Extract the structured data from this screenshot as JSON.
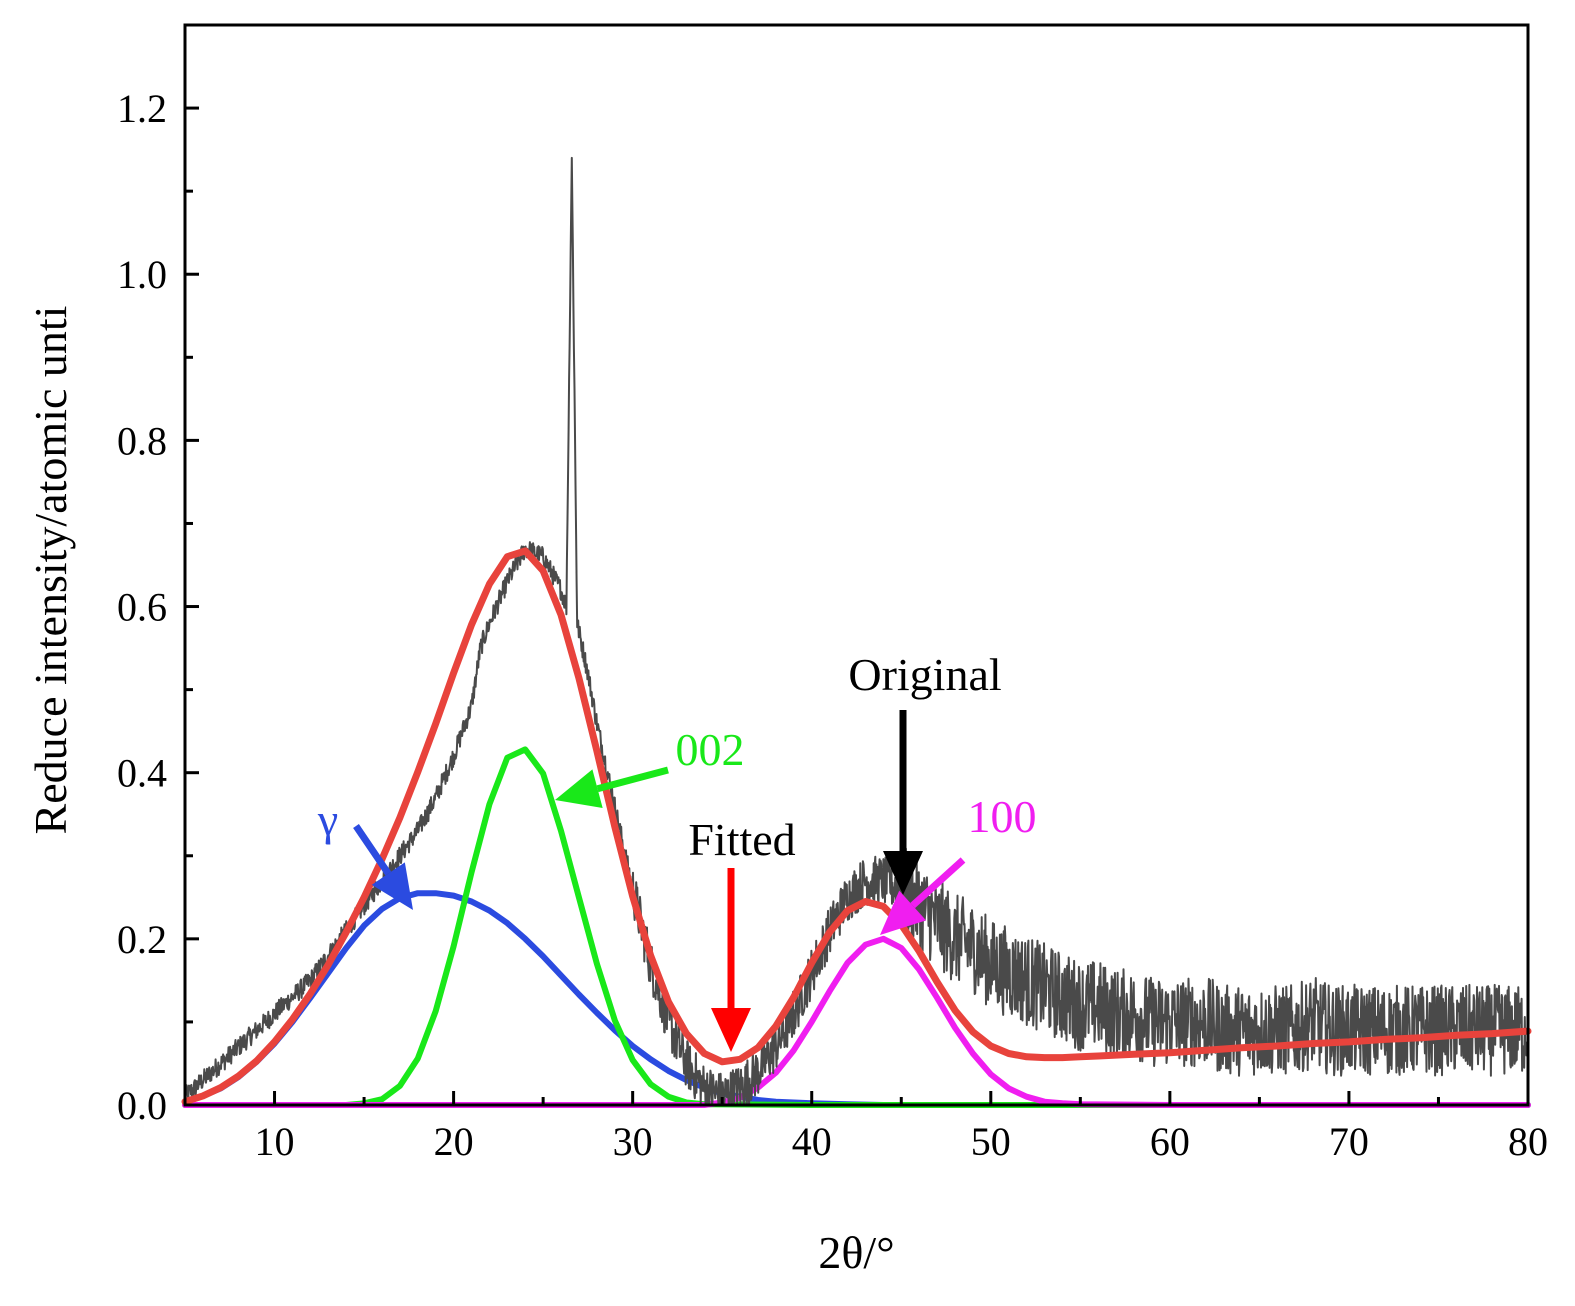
{
  "chart_data": {
    "type": "line",
    "title": "",
    "xlabel": "2θ/°",
    "ylabel": "Reduce intensity/atomic unti",
    "xlim": [
      5,
      80
    ],
    "ylim": [
      0,
      1.3
    ],
    "x_ticks": [
      10,
      20,
      30,
      40,
      50,
      60,
      70,
      80
    ],
    "y_ticks": [
      0.0,
      0.2,
      0.4,
      0.6,
      0.8,
      1.0,
      1.2
    ],
    "x_tick_labels": [
      "10",
      "20",
      "30",
      "40",
      "50",
      "60",
      "70",
      "80"
    ],
    "y_tick_labels": [
      "0.0",
      "0.2",
      "0.4",
      "0.6",
      "0.8",
      "1.0",
      "1.2"
    ],
    "grid": false,
    "series": [
      {
        "name": "Original",
        "color": "#4a4a4a",
        "x": [
          5,
          6,
          7,
          8,
          9,
          10,
          11,
          12,
          13,
          14,
          15,
          16,
          17,
          18,
          19,
          20,
          21,
          21.5,
          22,
          23,
          24,
          25,
          26,
          26.3,
          26.6,
          26.9,
          27.5,
          28,
          29,
          30,
          31,
          32,
          33,
          34,
          35,
          36,
          37,
          38,
          39,
          40,
          41,
          42,
          43,
          44,
          45,
          46,
          47,
          48,
          49,
          50,
          51,
          52,
          53,
          54,
          55,
          56,
          57,
          58,
          59,
          60,
          61,
          62,
          63,
          64,
          65,
          66,
          67,
          68,
          69,
          70,
          72,
          74,
          76,
          78,
          80
        ],
        "y": [
          0.01,
          0.03,
          0.05,
          0.07,
          0.09,
          0.11,
          0.13,
          0.15,
          0.18,
          0.21,
          0.24,
          0.27,
          0.3,
          0.33,
          0.37,
          0.42,
          0.48,
          0.55,
          0.58,
          0.63,
          0.67,
          0.66,
          0.62,
          0.6,
          1.14,
          0.58,
          0.52,
          0.46,
          0.36,
          0.26,
          0.17,
          0.1,
          0.05,
          0.02,
          0.01,
          0.02,
          0.04,
          0.07,
          0.11,
          0.16,
          0.21,
          0.25,
          0.27,
          0.27,
          0.26,
          0.24,
          0.22,
          0.2,
          0.19,
          0.17,
          0.16,
          0.15,
          0.14,
          0.13,
          0.12,
          0.12,
          0.11,
          0.11,
          0.1,
          0.1,
          0.1,
          0.1,
          0.09,
          0.09,
          0.09,
          0.09,
          0.09,
          0.1,
          0.09,
          0.09,
          0.09,
          0.09,
          0.09,
          0.09,
          0.09
        ]
      },
      {
        "name": "Fitted",
        "color": "#e8433c",
        "x": [
          5,
          6,
          7,
          8,
          9,
          10,
          11,
          12,
          13,
          14,
          15,
          16,
          17,
          18,
          19,
          20,
          21,
          22,
          23,
          24,
          25,
          26,
          27,
          28,
          29,
          30,
          31,
          32,
          33,
          34,
          35,
          36,
          37,
          38,
          39,
          40,
          41,
          42,
          43,
          44,
          45,
          46,
          47,
          48,
          49,
          50,
          51,
          52,
          53,
          54,
          55,
          56,
          58,
          60,
          62,
          64,
          66,
          68,
          70,
          72,
          74,
          76,
          78,
          80
        ],
        "y": [
          0.004,
          0.011,
          0.021,
          0.035,
          0.053,
          0.076,
          0.103,
          0.134,
          0.169,
          0.208,
          0.25,
          0.296,
          0.346,
          0.401,
          0.459,
          0.52,
          0.578,
          0.627,
          0.66,
          0.667,
          0.643,
          0.59,
          0.514,
          0.426,
          0.335,
          0.251,
          0.18,
          0.124,
          0.086,
          0.062,
          0.052,
          0.055,
          0.069,
          0.095,
          0.13,
          0.171,
          0.208,
          0.234,
          0.245,
          0.239,
          0.217,
          0.185,
          0.148,
          0.114,
          0.088,
          0.071,
          0.062,
          0.058,
          0.057,
          0.057,
          0.058,
          0.059,
          0.061,
          0.063,
          0.066,
          0.069,
          0.071,
          0.074,
          0.076,
          0.079,
          0.081,
          0.084,
          0.086,
          0.089
        ]
      },
      {
        "name": "γ",
        "color": "#2b4be0",
        "x": [
          5,
          6,
          7,
          8,
          9,
          10,
          11,
          12,
          13,
          14,
          15,
          16,
          17,
          18,
          19,
          20,
          21,
          22,
          23,
          24,
          25,
          26,
          27,
          28,
          29,
          30,
          31,
          32,
          33,
          34,
          35,
          36,
          37,
          38,
          40,
          42,
          44,
          46,
          48,
          50,
          55,
          60,
          70,
          80
        ],
        "y": [
          0.004,
          0.011,
          0.02,
          0.034,
          0.052,
          0.074,
          0.1,
          0.129,
          0.159,
          0.189,
          0.216,
          0.236,
          0.249,
          0.255,
          0.255,
          0.252,
          0.245,
          0.234,
          0.219,
          0.2,
          0.179,
          0.156,
          0.133,
          0.111,
          0.09,
          0.071,
          0.055,
          0.041,
          0.03,
          0.021,
          0.014,
          0.01,
          0.006,
          0.004,
          0.002,
          0.001,
          0.0,
          0.0,
          0.0,
          0.0,
          0.0,
          0.0,
          0.0,
          0.0
        ]
      },
      {
        "name": "002",
        "color": "#19e819",
        "x": [
          5,
          10,
          14,
          15,
          16,
          17,
          18,
          19,
          20,
          21,
          22,
          23,
          24,
          25,
          26,
          27,
          28,
          29,
          30,
          31,
          32,
          33,
          34,
          40,
          50,
          80
        ],
        "y": [
          0.0,
          0.0,
          0.0,
          0.002,
          0.007,
          0.023,
          0.056,
          0.113,
          0.191,
          0.28,
          0.362,
          0.418,
          0.428,
          0.399,
          0.33,
          0.25,
          0.17,
          0.102,
          0.054,
          0.025,
          0.01,
          0.003,
          0.001,
          0.0,
          0.0,
          0.0
        ]
      },
      {
        "name": "100",
        "color": "#f01ef0",
        "x": [
          5,
          30,
          34,
          35,
          36,
          37,
          38,
          39,
          40,
          41,
          42,
          43,
          44,
          45,
          46,
          47,
          48,
          49,
          50,
          51,
          52,
          53,
          54,
          55,
          60,
          80
        ],
        "y": [
          0.0,
          0.0,
          0.0,
          0.003,
          0.009,
          0.021,
          0.039,
          0.066,
          0.1,
          0.137,
          0.171,
          0.193,
          0.2,
          0.189,
          0.163,
          0.129,
          0.093,
          0.062,
          0.037,
          0.02,
          0.01,
          0.004,
          0.002,
          0.001,
          0.0,
          0.0
        ]
      }
    ],
    "annotations": [
      {
        "text": "Original",
        "color": "#000000",
        "points_to": [
          45,
          0.25
        ]
      },
      {
        "text": "Fitted",
        "color": "#000000",
        "points_to": [
          35.5,
          0.06
        ]
      },
      {
        "text": "002",
        "color": "#19e819",
        "points_to": [
          25.5,
          0.37
        ]
      },
      {
        "text": "100",
        "color": "#f01ef0",
        "points_to": [
          44.2,
          0.21
        ]
      },
      {
        "text": "γ",
        "color": "#2b4be0",
        "points_to": [
          17.8,
          0.235
        ]
      }
    ],
    "arrow_colors": {
      "Original": "#000000",
      "Fitted": "#ff0000",
      "002": "#19e819",
      "100": "#f01ef0",
      "γ": "#2b4be0"
    }
  }
}
